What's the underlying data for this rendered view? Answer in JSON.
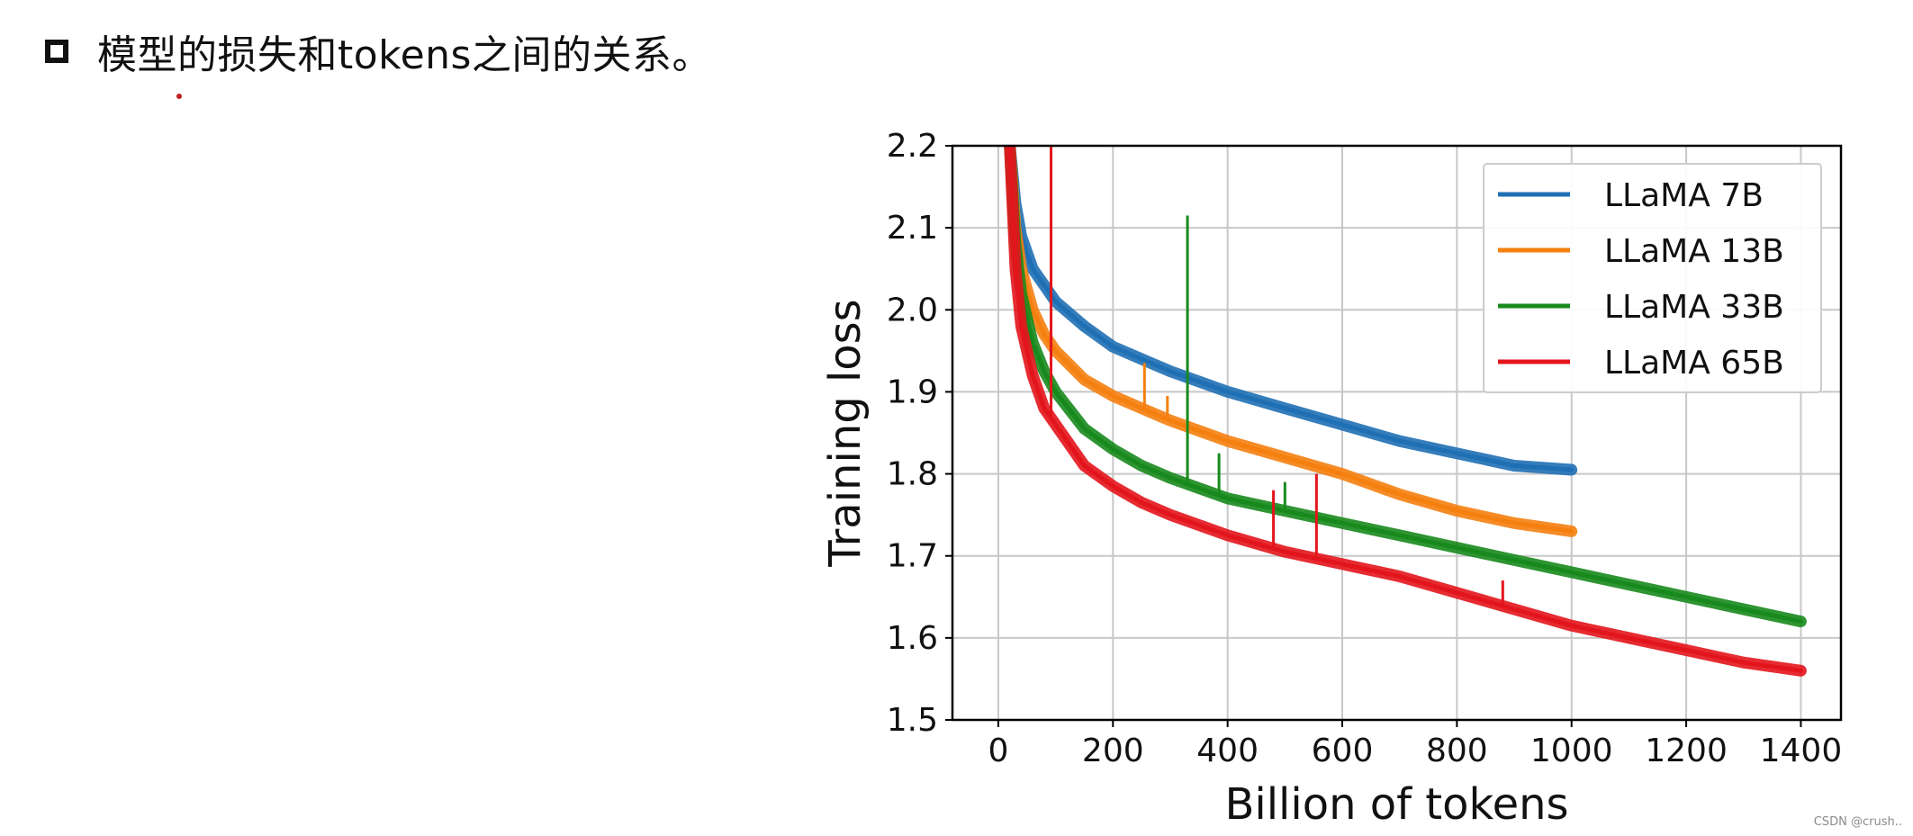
{
  "heading": {
    "text": "模型的损失和tokens之间的关系。"
  },
  "watermark": "CSDN @crush..",
  "chart_data": {
    "type": "line",
    "xlabel": "Billion of tokens",
    "ylabel": "Training loss",
    "xlim": [
      -80,
      1470
    ],
    "ylim": [
      1.5,
      2.2
    ],
    "xticks": [
      0,
      200,
      400,
      600,
      800,
      1000,
      1200,
      1400
    ],
    "yticks": [
      1.5,
      1.6,
      1.7,
      1.8,
      1.9,
      2.0,
      2.1,
      2.2
    ],
    "xtick_labels": [
      "0",
      "200",
      "400",
      "600",
      "800",
      "1000",
      "1200",
      "1400"
    ],
    "ytick_labels": [
      "1.5",
      "1.6",
      "1.7",
      "1.8",
      "1.9",
      "2.0",
      "2.1",
      "2.2"
    ],
    "grid": true,
    "legend_position": "top-right",
    "series": [
      {
        "name": "LLaMA 7B",
        "color": "#1f6fb4",
        "x": [
          20,
          30,
          40,
          60,
          80,
          100,
          150,
          200,
          250,
          300,
          400,
          500,
          600,
          700,
          800,
          900,
          1000
        ],
        "y": [
          2.2,
          2.13,
          2.09,
          2.05,
          2.03,
          2.01,
          1.98,
          1.955,
          1.94,
          1.925,
          1.9,
          1.88,
          1.86,
          1.84,
          1.825,
          1.81,
          1.805
        ]
      },
      {
        "name": "LLaMA 13B",
        "color": "#f5800f",
        "x": [
          20,
          30,
          40,
          60,
          80,
          100,
          150,
          200,
          250,
          300,
          400,
          500,
          600,
          700,
          800,
          900,
          1000
        ],
        "y": [
          2.2,
          2.1,
          2.05,
          2.0,
          1.97,
          1.95,
          1.915,
          1.895,
          1.88,
          1.865,
          1.84,
          1.82,
          1.8,
          1.775,
          1.755,
          1.74,
          1.73
        ]
      },
      {
        "name": "LLaMA 33B",
        "color": "#188a1d",
        "x": [
          20,
          30,
          40,
          60,
          80,
          100,
          150,
          200,
          250,
          300,
          400,
          500,
          600,
          700,
          800,
          900,
          1000,
          1100,
          1200,
          1300,
          1400
        ],
        "y": [
          2.2,
          2.08,
          2.02,
          1.96,
          1.925,
          1.9,
          1.855,
          1.83,
          1.81,
          1.795,
          1.77,
          1.755,
          1.74,
          1.725,
          1.71,
          1.695,
          1.68,
          1.665,
          1.65,
          1.635,
          1.62
        ]
      },
      {
        "name": "LLaMA 65B",
        "color": "#e3151c",
        "x": [
          20,
          30,
          40,
          60,
          80,
          100,
          150,
          200,
          250,
          300,
          400,
          500,
          600,
          700,
          800,
          900,
          1000,
          1100,
          1200,
          1300,
          1400
        ],
        "y": [
          2.2,
          2.05,
          1.98,
          1.92,
          1.88,
          1.86,
          1.81,
          1.785,
          1.765,
          1.75,
          1.725,
          1.705,
          1.69,
          1.675,
          1.655,
          1.635,
          1.615,
          1.6,
          1.585,
          1.57,
          1.56
        ]
      }
    ],
    "spikes": [
      {
        "series": "LLaMA 65B",
        "x": 92,
        "y": 2.2
      },
      {
        "series": "LLaMA 65B",
        "x": 480,
        "y": 1.78
      },
      {
        "series": "LLaMA 65B",
        "x": 555,
        "y": 1.8
      },
      {
        "series": "LLaMA 65B",
        "x": 880,
        "y": 1.67
      },
      {
        "series": "LLaMA 33B",
        "x": 330,
        "y": 2.115
      },
      {
        "series": "LLaMA 33B",
        "x": 385,
        "y": 1.825
      },
      {
        "series": "LLaMA 33B",
        "x": 500,
        "y": 1.79
      },
      {
        "series": "LLaMA 13B",
        "x": 255,
        "y": 1.935
      },
      {
        "series": "LLaMA 13B",
        "x": 295,
        "y": 1.895
      }
    ]
  }
}
